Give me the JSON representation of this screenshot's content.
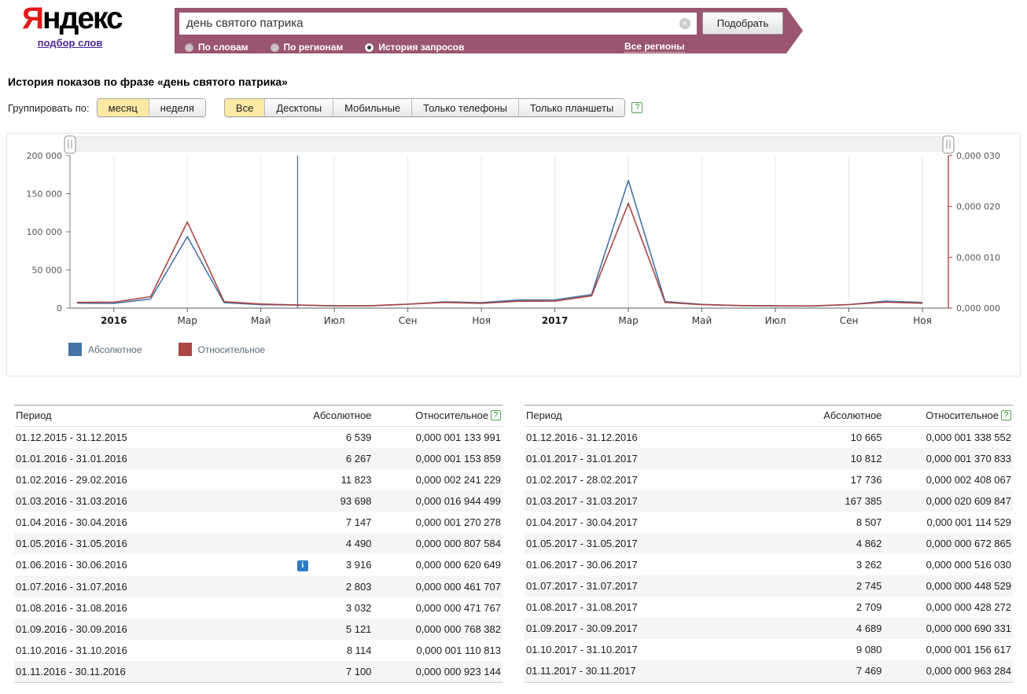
{
  "header": {
    "logo_ya": "Я",
    "logo_rest": "ндекс",
    "logo_link": "подбор слов",
    "search": {
      "value": "день святого патрика",
      "clear_icon": "✕",
      "submit_label": "Подобрать"
    },
    "modes": [
      {
        "label": "По словам",
        "selected": false
      },
      {
        "label": "По регионам",
        "selected": false
      },
      {
        "label": "История запросов",
        "selected": true
      }
    ],
    "region_link": "Все регионы"
  },
  "page": {
    "title": "История показов по фразе «день святого патрика»"
  },
  "controls": {
    "group_label": "Группировать по:",
    "group_options": [
      {
        "label": "месяц",
        "selected": true
      },
      {
        "label": "неделя",
        "selected": false
      }
    ],
    "device_tabs": [
      {
        "label": "Все",
        "selected": true
      },
      {
        "label": "Десктопы",
        "selected": false
      },
      {
        "label": "Мобильные",
        "selected": false
      },
      {
        "label": "Только телефоны",
        "selected": false
      },
      {
        "label": "Только планшеты",
        "selected": false
      }
    ],
    "help_icon": "?"
  },
  "chart_data": {
    "type": "line",
    "x_months": [
      "12.2015",
      "01.2016",
      "02.2016",
      "03.2016",
      "04.2016",
      "05.2016",
      "06.2016",
      "07.2016",
      "08.2016",
      "09.2016",
      "10.2016",
      "11.2016",
      "12.2016",
      "01.2017",
      "02.2017",
      "03.2017",
      "04.2017",
      "05.2017",
      "06.2017",
      "07.2017",
      "08.2017",
      "09.2017",
      "10.2017",
      "11.2017"
    ],
    "x_labels": [
      "2016",
      "Мар",
      "Май",
      "Июл",
      "Сен",
      "Ноя",
      "2017",
      "Мар",
      "Май",
      "Июл",
      "Сен",
      "Ноя"
    ],
    "x_label_indices": [
      1,
      3,
      5,
      7,
      9,
      11,
      13,
      15,
      17,
      19,
      21,
      23
    ],
    "series": [
      {
        "name": "Абсолютное",
        "color": "#4572a7",
        "axis": "left",
        "values": [
          6539,
          6267,
          11823,
          93698,
          7147,
          4490,
          3916,
          2803,
          3032,
          5121,
          8114,
          7100,
          10665,
          10812,
          17736,
          167385,
          8507,
          4862,
          3262,
          2745,
          2709,
          4689,
          9080,
          7469
        ]
      },
      {
        "name": "Относительное",
        "color": "#aa4643",
        "axis": "right",
        "unit": "millionths (0,000 001)",
        "values": [
          1.133991,
          1.153859,
          2.241229,
          16.944499,
          1.270278,
          0.807584,
          0.620649,
          0.461707,
          0.471767,
          0.768382,
          1.110813,
          0.923144,
          1.338552,
          1.370833,
          2.408067,
          20.609847,
          1.114529,
          0.672865,
          0.51603,
          0.448529,
          0.428272,
          0.690331,
          1.156617,
          0.963284
        ]
      }
    ],
    "left_axis": {
      "ticks": [
        "0",
        "50 000",
        "100 000",
        "150 000",
        "200 000"
      ],
      "max": 200000
    },
    "right_axis": {
      "ticks": [
        "0,000 000",
        "0,000 010",
        "0,000 020",
        "0,000 030"
      ],
      "max": 30
    },
    "grid": "vertical",
    "legend_position": "bottom-left",
    "crosshair_index": 6
  },
  "tables": {
    "left": {
      "headers": {
        "period": "Период",
        "absolute": "Абсолютное",
        "relative": "Относительное",
        "help": "?"
      },
      "rows": [
        {
          "period": "01.12.2015 - 31.12.2015",
          "absolute": "6 539",
          "relative": "0,000 001 133 991"
        },
        {
          "period": "01.01.2016 - 31.01.2016",
          "absolute": "6 267",
          "relative": "0,000 001 153 859"
        },
        {
          "period": "01.02.2016 - 29.02.2016",
          "absolute": "11 823",
          "relative": "0,000 002 241 229"
        },
        {
          "period": "01.03.2016 - 31.03.2016",
          "absolute": "93 698",
          "relative": "0,000 016 944 499"
        },
        {
          "period": "01.04.2016 - 30.04.2016",
          "absolute": "7 147",
          "relative": "0,000 001 270 278"
        },
        {
          "period": "01.05.2016 - 31.05.2016",
          "absolute": "4 490",
          "relative": "0,000 000 807 584"
        },
        {
          "period": "01.06.2016 - 30.06.2016",
          "absolute": "3 916",
          "relative": "0,000 000 620 649",
          "info": "i"
        },
        {
          "period": "01.07.2016 - 31.07.2016",
          "absolute": "2 803",
          "relative": "0,000 000 461 707"
        },
        {
          "period": "01.08.2016 - 31.08.2016",
          "absolute": "3 032",
          "relative": "0,000 000 471 767"
        },
        {
          "period": "01.09.2016 - 30.09.2016",
          "absolute": "5 121",
          "relative": "0,000 000 768 382"
        },
        {
          "period": "01.10.2016 - 31.10.2016",
          "absolute": "8 114",
          "relative": "0,000 001 110 813"
        },
        {
          "period": "01.11.2016 - 30.11.2016",
          "absolute": "7 100",
          "relative": "0,000 000 923 144"
        }
      ]
    },
    "right": {
      "headers": {
        "period": "Период",
        "absolute": "Абсолютное",
        "relative": "Относительное",
        "help": "?"
      },
      "rows": [
        {
          "period": "01.12.2016 - 31.12.2016",
          "absolute": "10 665",
          "relative": "0,000 001 338 552"
        },
        {
          "period": "01.01.2017 - 31.01.2017",
          "absolute": "10 812",
          "relative": "0,000 001 370 833"
        },
        {
          "period": "01.02.2017 - 28.02.2017",
          "absolute": "17 736",
          "relative": "0,000 002 408 067"
        },
        {
          "period": "01.03.2017 - 31.03.2017",
          "absolute": "167 385",
          "relative": "0,000 020 609 847"
        },
        {
          "period": "01.04.2017 - 30.04.2017",
          "absolute": "8 507",
          "relative": "0,000 001 114 529"
        },
        {
          "period": "01.05.2017 - 31.05.2017",
          "absolute": "4 862",
          "relative": "0,000 000 672 865"
        },
        {
          "period": "01.06.2017 - 30.06.2017",
          "absolute": "3 262",
          "relative": "0,000 000 516 030"
        },
        {
          "period": "01.07.2017 - 31.07.2017",
          "absolute": "2 745",
          "relative": "0,000 000 448 529"
        },
        {
          "period": "01.08.2017 - 31.08.2017",
          "absolute": "2 709",
          "relative": "0,000 000 428 272"
        },
        {
          "period": "01.09.2017 - 30.09.2017",
          "absolute": "4 689",
          "relative": "0,000 000 690 331"
        },
        {
          "period": "01.10.2017 - 31.10.2017",
          "absolute": "9 080",
          "relative": "0,000 001 156 617"
        },
        {
          "period": "01.11.2017 - 30.11.2017",
          "absolute": "7 469",
          "relative": "0,000 000 963 284"
        }
      ]
    }
  },
  "colors": {
    "band": "#9a5570",
    "series_absolute": "#4572a7",
    "series_relative": "#aa4643",
    "selected_tab": "#fbe9a4",
    "logo_red": "#e21a1a"
  }
}
